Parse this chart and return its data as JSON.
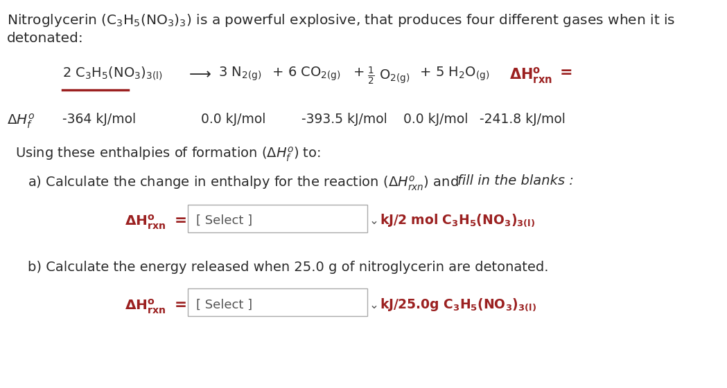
{
  "bg_color": "#ffffff",
  "text_color": "#2b2b2b",
  "red_color": "#9b2020",
  "figsize": [
    10.49,
    5.61
  ],
  "dpi": 100,
  "enthalpy_values": [
    "-364 kJ/mol",
    "0.0 kJ/mol",
    "-393.5 kJ/mol",
    "0.0 kJ/mol",
    "-241.8 kJ/mol"
  ]
}
